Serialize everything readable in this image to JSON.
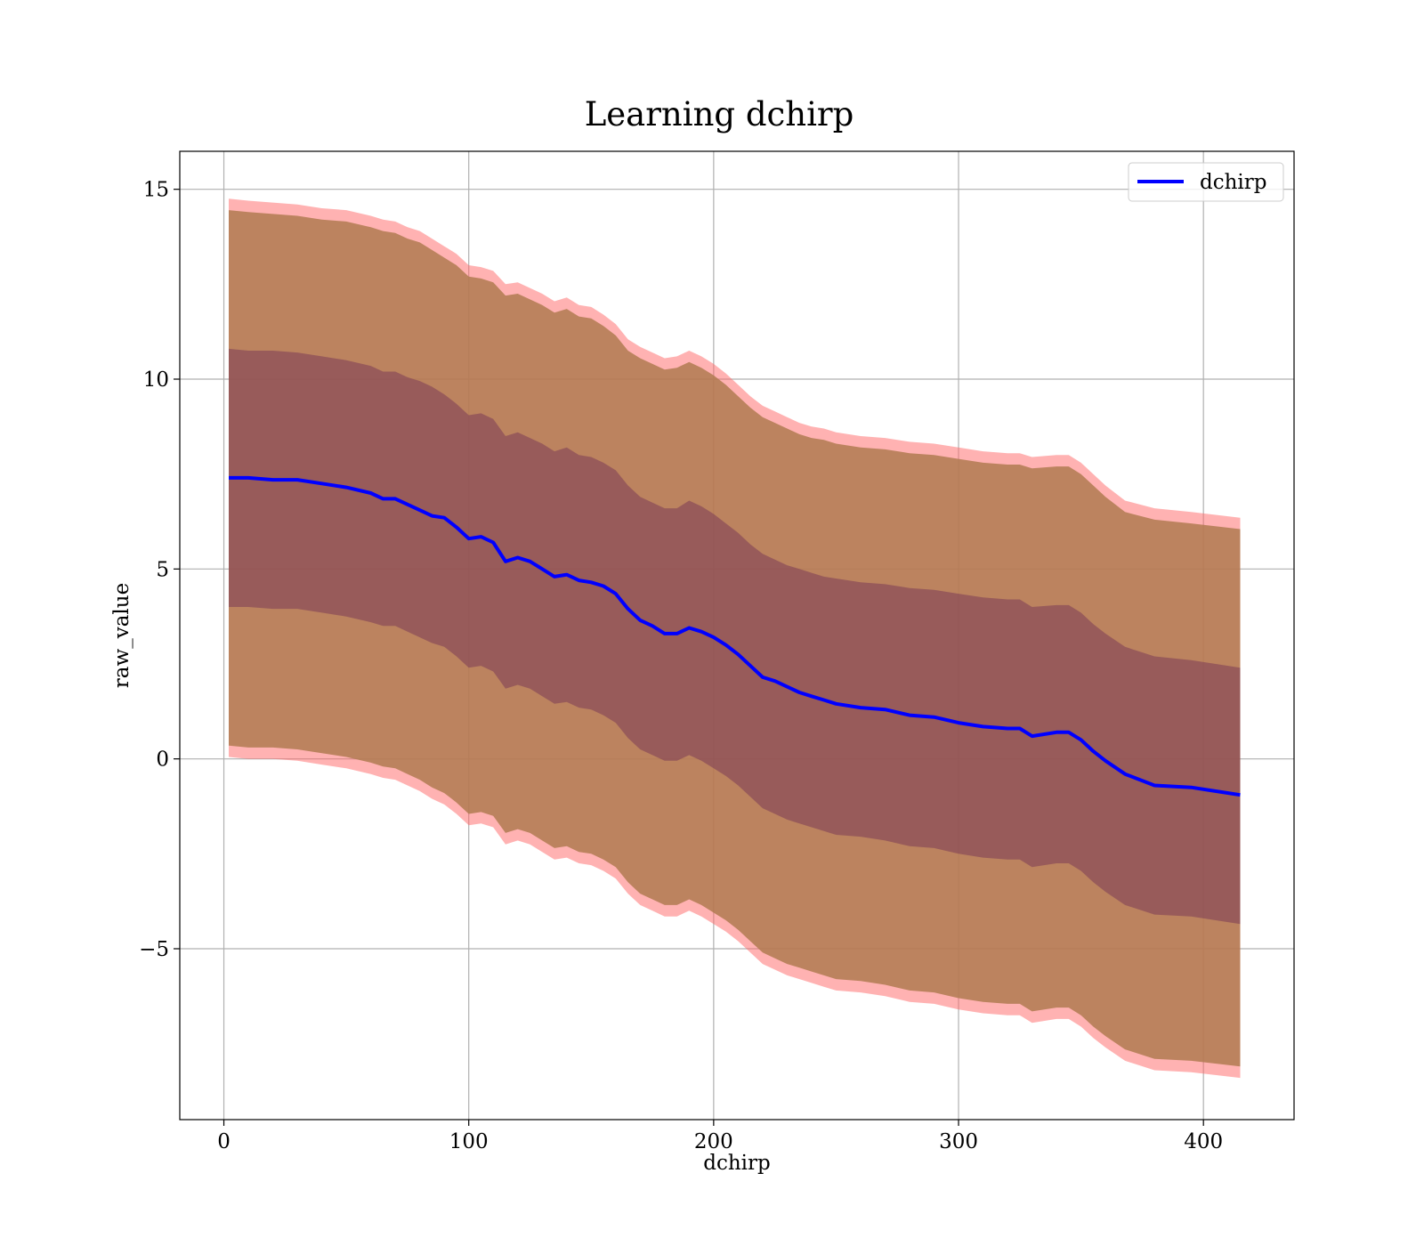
{
  "chart_data": {
    "type": "line",
    "title": "Learning dchirp",
    "xlabel": "dchirp",
    "ylabel": "raw_value",
    "xlim": [
      -18,
      437
    ],
    "ylim": [
      -9.5,
      16
    ],
    "xticks": [
      0,
      100,
      200,
      300,
      400
    ],
    "yticks": [
      -5,
      0,
      5,
      10,
      15
    ],
    "xtick_labels": [
      "0",
      "100",
      "200",
      "300",
      "400"
    ],
    "ytick_labels": [
      "−5",
      "0",
      "5",
      "10",
      "15"
    ],
    "grid": true,
    "legend_position": "top-right",
    "colors": {
      "line": "#0000ff",
      "outer_band": "#ff6666",
      "middle_band": "#b07a50",
      "inner_band": "#7a3a55",
      "grid": "#b0b0b0"
    },
    "series": [
      {
        "name": "dchirp",
        "x": [
          2,
          10,
          20,
          30,
          40,
          50,
          60,
          65,
          70,
          75,
          80,
          85,
          90,
          95,
          100,
          105,
          110,
          115,
          120,
          125,
          130,
          135,
          140,
          145,
          150,
          155,
          160,
          165,
          170,
          175,
          180,
          185,
          190,
          195,
          200,
          205,
          210,
          215,
          220,
          225,
          230,
          235,
          240,
          245,
          250,
          260,
          270,
          280,
          290,
          300,
          310,
          320,
          325,
          330,
          340,
          345,
          350,
          355,
          360,
          368,
          380,
          395,
          415
        ],
        "y": [
          7.4,
          7.4,
          7.35,
          7.35,
          7.25,
          7.15,
          7.0,
          6.85,
          6.85,
          6.7,
          6.55,
          6.4,
          6.35,
          6.1,
          5.8,
          5.85,
          5.7,
          5.2,
          5.3,
          5.2,
          5.0,
          4.8,
          4.85,
          4.7,
          4.65,
          4.55,
          4.35,
          3.95,
          3.65,
          3.5,
          3.3,
          3.3,
          3.45,
          3.35,
          3.2,
          3.0,
          2.75,
          2.45,
          2.15,
          2.05,
          1.9,
          1.75,
          1.65,
          1.55,
          1.45,
          1.35,
          1.3,
          1.15,
          1.1,
          0.95,
          0.85,
          0.8,
          0.8,
          0.6,
          0.7,
          0.7,
          0.5,
          0.2,
          -0.05,
          -0.4,
          -0.7,
          -0.75,
          -0.95
        ],
        "outer_upper": [
          14.75,
          14.7,
          14.65,
          14.6,
          14.5,
          14.45,
          14.3,
          14.2,
          14.15,
          14.0,
          13.9,
          13.7,
          13.5,
          13.3,
          13.0,
          12.95,
          12.85,
          12.5,
          12.55,
          12.4,
          12.25,
          12.05,
          12.15,
          11.95,
          11.9,
          11.7,
          11.45,
          11.05,
          10.85,
          10.7,
          10.55,
          10.6,
          10.75,
          10.6,
          10.4,
          10.15,
          9.85,
          9.55,
          9.3,
          9.15,
          9.0,
          8.85,
          8.75,
          8.7,
          8.6,
          8.5,
          8.45,
          8.35,
          8.3,
          8.2,
          8.1,
          8.05,
          8.05,
          7.95,
          8.0,
          8.0,
          7.8,
          7.5,
          7.2,
          6.8,
          6.6,
          6.5,
          6.35
        ],
        "middle_upper": [
          14.45,
          14.4,
          14.35,
          14.3,
          14.2,
          14.15,
          14.0,
          13.9,
          13.85,
          13.7,
          13.6,
          13.4,
          13.2,
          13.0,
          12.7,
          12.65,
          12.55,
          12.2,
          12.25,
          12.1,
          11.95,
          11.75,
          11.85,
          11.65,
          11.6,
          11.4,
          11.15,
          10.75,
          10.55,
          10.4,
          10.25,
          10.3,
          10.45,
          10.3,
          10.1,
          9.85,
          9.55,
          9.25,
          9.0,
          8.85,
          8.7,
          8.55,
          8.45,
          8.4,
          8.3,
          8.2,
          8.15,
          8.05,
          8.0,
          7.9,
          7.8,
          7.75,
          7.75,
          7.65,
          7.7,
          7.7,
          7.5,
          7.2,
          6.9,
          6.5,
          6.3,
          6.2,
          6.05
        ],
        "inner_upper": [
          10.8,
          10.75,
          10.75,
          10.7,
          10.6,
          10.5,
          10.35,
          10.2,
          10.2,
          10.05,
          9.95,
          9.8,
          9.6,
          9.35,
          9.05,
          9.1,
          8.95,
          8.5,
          8.6,
          8.45,
          8.3,
          8.1,
          8.2,
          8.0,
          7.95,
          7.8,
          7.6,
          7.2,
          6.9,
          6.75,
          6.6,
          6.6,
          6.8,
          6.65,
          6.45,
          6.2,
          5.95,
          5.65,
          5.4,
          5.25,
          5.1,
          5.0,
          4.9,
          4.8,
          4.75,
          4.65,
          4.6,
          4.5,
          4.45,
          4.35,
          4.25,
          4.2,
          4.2,
          4.0,
          4.05,
          4.05,
          3.85,
          3.55,
          3.3,
          2.95,
          2.7,
          2.6,
          2.4
        ],
        "inner_lower": [
          4.0,
          4.0,
          3.95,
          3.95,
          3.85,
          3.75,
          3.6,
          3.5,
          3.5,
          3.35,
          3.2,
          3.05,
          2.95,
          2.7,
          2.4,
          2.45,
          2.3,
          1.85,
          1.95,
          1.85,
          1.65,
          1.45,
          1.5,
          1.35,
          1.3,
          1.15,
          0.95,
          0.55,
          0.25,
          0.1,
          -0.05,
          -0.05,
          0.1,
          -0.05,
          -0.25,
          -0.45,
          -0.7,
          -1.0,
          -1.3,
          -1.45,
          -1.6,
          -1.7,
          -1.8,
          -1.9,
          -2.0,
          -2.05,
          -2.15,
          -2.3,
          -2.35,
          -2.5,
          -2.6,
          -2.65,
          -2.65,
          -2.85,
          -2.75,
          -2.75,
          -2.95,
          -3.25,
          -3.5,
          -3.85,
          -4.1,
          -4.15,
          -4.35
        ],
        "middle_lower": [
          0.35,
          0.3,
          0.3,
          0.25,
          0.15,
          0.05,
          -0.1,
          -0.2,
          -0.25,
          -0.4,
          -0.55,
          -0.75,
          -0.9,
          -1.15,
          -1.45,
          -1.4,
          -1.5,
          -1.95,
          -1.85,
          -1.95,
          -2.15,
          -2.35,
          -2.3,
          -2.45,
          -2.5,
          -2.65,
          -2.85,
          -3.25,
          -3.55,
          -3.7,
          -3.85,
          -3.85,
          -3.7,
          -3.85,
          -4.05,
          -4.25,
          -4.5,
          -4.8,
          -5.1,
          -5.25,
          -5.4,
          -5.5,
          -5.6,
          -5.7,
          -5.8,
          -5.85,
          -5.95,
          -6.1,
          -6.15,
          -6.3,
          -6.4,
          -6.45,
          -6.45,
          -6.65,
          -6.55,
          -6.55,
          -6.75,
          -7.05,
          -7.3,
          -7.65,
          -7.9,
          -7.95,
          -8.1
        ],
        "outer_lower": [
          0.05,
          0.0,
          0.0,
          -0.05,
          -0.15,
          -0.25,
          -0.4,
          -0.5,
          -0.55,
          -0.7,
          -0.85,
          -1.05,
          -1.2,
          -1.45,
          -1.75,
          -1.7,
          -1.8,
          -2.25,
          -2.15,
          -2.25,
          -2.45,
          -2.65,
          -2.6,
          -2.75,
          -2.8,
          -2.95,
          -3.15,
          -3.55,
          -3.85,
          -4.0,
          -4.15,
          -4.15,
          -4.0,
          -4.15,
          -4.35,
          -4.55,
          -4.8,
          -5.1,
          -5.4,
          -5.55,
          -5.7,
          -5.8,
          -5.9,
          -6.0,
          -6.1,
          -6.15,
          -6.25,
          -6.4,
          -6.45,
          -6.6,
          -6.7,
          -6.75,
          -6.75,
          -6.95,
          -6.85,
          -6.85,
          -7.05,
          -7.35,
          -7.6,
          -7.95,
          -8.2,
          -8.25,
          -8.4
        ]
      }
    ]
  }
}
